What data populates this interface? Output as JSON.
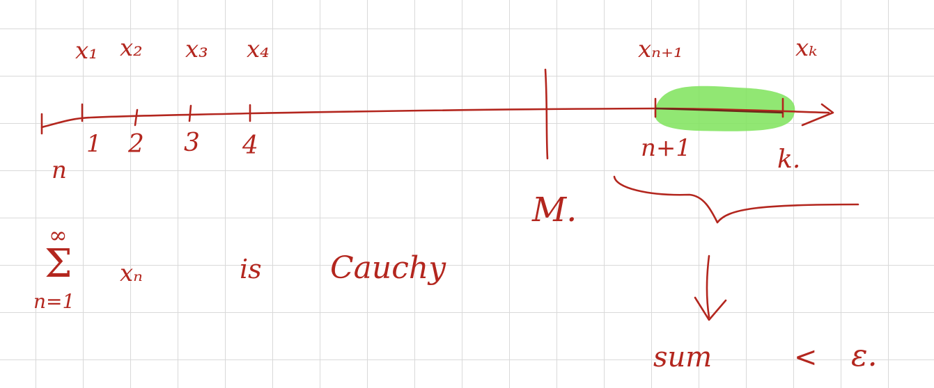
{
  "ink_color": "#b3261e",
  "highlight_color": "#7ee35a",
  "grid_color": "#d9d9d9",
  "top_labels": [
    "x₁",
    "x₂",
    "x₃",
    "x₄",
    "xₙ₊₁",
    "xₖ"
  ],
  "index_labels": [
    "1",
    "2",
    "3",
    "4",
    "n+1",
    "k."
  ],
  "index_axis_label": "n",
  "cut_label": "M.",
  "series": {
    "sum_symbol": "Σ",
    "upper": "∞",
    "lower": "n=1",
    "term": "xₙ",
    "verb": "is",
    "property": "Cauchy"
  },
  "conclusion": {
    "word": "sum",
    "relation": "<",
    "epsilon": "ε."
  }
}
